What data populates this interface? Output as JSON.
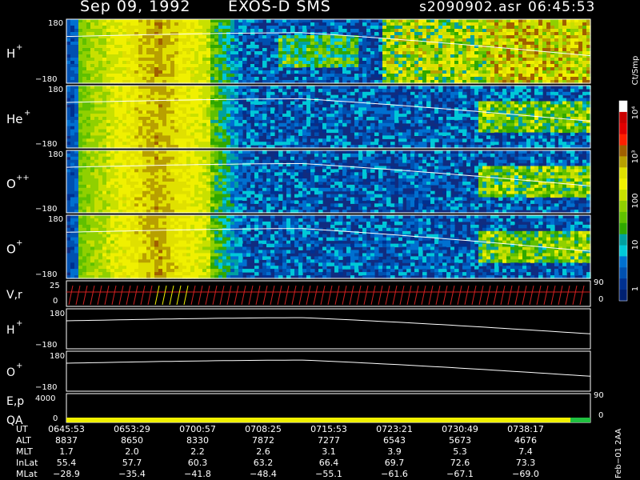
{
  "header": {
    "date": "Sep 09, 1992",
    "instrument": "EXOS-D SMS",
    "file": "s2090902.asr",
    "time": "06:45:53"
  },
  "colorbar": {
    "unit": "Ct/Smp",
    "ticks": [
      "10⁴",
      "10³",
      "100",
      "10",
      "1"
    ],
    "colors": [
      "#ffffff",
      "#c80000",
      "#e00000",
      "#ff2000",
      "#a06000",
      "#b8a000",
      "#e0e000",
      "#f0f000",
      "#c8e000",
      "#90d000",
      "#60c000",
      "#30a800",
      "#00a0a0",
      "#00c8d8",
      "#0070d0",
      "#0050b0",
      "#003090",
      "#002070"
    ]
  },
  "chart_data": {
    "type": "heatmap",
    "panels": [
      {
        "label": "H",
        "sup": "+",
        "ymax": "180",
        "ymin": "−180"
      },
      {
        "label": "He",
        "sup": "+",
        "ymax": "180",
        "ymin": "−180"
      },
      {
        "label": "O",
        "sup": "++",
        "ymax": "180",
        "ymin": "−180"
      },
      {
        "label": "O",
        "sup": "+",
        "ymax": "180",
        "ymin": "−180"
      }
    ],
    "line_panels": [
      {
        "label": "V,r",
        "ymax": "25",
        "ymin": "0",
        "right_top": "90",
        "right_bottom": "0"
      },
      {
        "label": "H",
        "sup": "+",
        "ymax": "180",
        "ymin": "−180"
      },
      {
        "label": "O",
        "sup": "+",
        "ymax": "180",
        "ymin": "−180"
      },
      {
        "label": "E,p",
        "label2": "QA",
        "ymax": "4000",
        "ymin": "0",
        "right_top": "90",
        "right_bottom": "0"
      }
    ]
  },
  "table": {
    "row_labels": [
      "UT",
      "ALT",
      "MLT",
      "InLat",
      "MLat"
    ],
    "columns": [
      [
        "0645:53",
        "8837",
        "1.7",
        "55.4",
        "−28.9"
      ],
      [
        "0653:29",
        "8650",
        "2.0",
        "57.7",
        "−35.4"
      ],
      [
        "0700:57",
        "8330",
        "2.2",
        "60.3",
        "−41.8"
      ],
      [
        "0708:25",
        "7872",
        "2.6",
        "63.2",
        "−48.4"
      ],
      [
        "0715:53",
        "7277",
        "3.1",
        "66.4",
        "−55.1"
      ],
      [
        "0723:21",
        "6543",
        "3.9",
        "69.7",
        "−61.6"
      ],
      [
        "0730:49",
        "5673",
        "5.3",
        "72.6",
        "−67.1"
      ],
      [
        "0738:17",
        "4676",
        "7.4",
        "73.3",
        "−69.0"
      ]
    ]
  },
  "footer": "Feb−01 2AA"
}
